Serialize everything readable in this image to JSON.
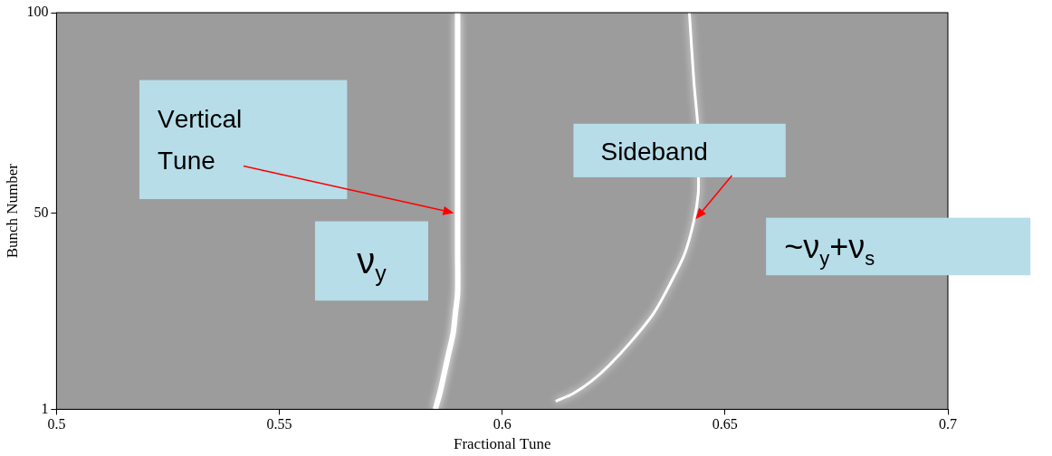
{
  "chart_data": {
    "type": "line",
    "x_label": "Fractional Tune",
    "y_label": "Bunch Number",
    "xlim": [
      0.5,
      0.7
    ],
    "xticks": [
      0.5,
      0.55,
      0.6,
      0.65,
      0.7
    ],
    "ylim": [
      1,
      100
    ],
    "yticks": [
      1,
      50,
      100
    ],
    "grid": false,
    "series": [
      {
        "name": "Vertical Tune",
        "color": "#ffffff",
        "x": [
          0.585,
          0.586,
          0.587,
          0.588,
          0.589,
          0.5895,
          0.59,
          0.59,
          0.59,
          0.59,
          0.59,
          0.59,
          0.59,
          0.59
        ],
        "values": [
          1,
          5,
          10,
          15,
          20,
          25,
          30,
          40,
          50,
          60,
          70,
          80,
          90,
          100
        ]
      },
      {
        "name": "Sideband",
        "color": "#ffffff",
        "x": [
          0.612,
          0.616,
          0.62,
          0.624,
          0.629,
          0.634,
          0.638,
          0.641,
          0.643,
          0.644,
          0.644,
          0.644,
          0.643,
          0.642
        ],
        "values": [
          3,
          5,
          8,
          12,
          18,
          25,
          33,
          40,
          48,
          55,
          61,
          70,
          83,
          100
        ]
      }
    ],
    "annotations": [
      "νy",
      "~νy+νs"
    ]
  }
}
